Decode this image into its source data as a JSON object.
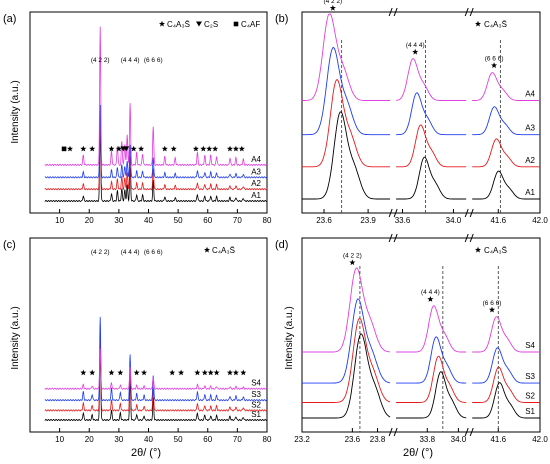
{
  "figure": {
    "ylabel": "Intensity (a.u.)",
    "xlabel": "2θ/ (°)"
  },
  "chart_data": [
    {
      "panel": "(a)",
      "type": "line",
      "ylabel": "Intensity (a.u.)",
      "xlabel": "",
      "xlim": [
        0,
        80
      ],
      "xticks": [
        10,
        20,
        30,
        40,
        50,
        60,
        70,
        80
      ],
      "legend": {
        "placement": "top-right",
        "entries": [
          {
            "marker": "star",
            "label": "C₄A₃S̄"
          },
          {
            "marker": "triangle-down",
            "label": "C₂S"
          },
          {
            "marker": "square",
            "label": "C₄AF"
          }
        ]
      },
      "peak_labels": [
        {
          "text": "(4 2 2)",
          "x": 23.7
        },
        {
          "text": "(4 4 4)",
          "x": 33.8
        },
        {
          "text": "(6 6 6)",
          "x": 41.6
        }
      ],
      "marker_row": [
        {
          "type": "square",
          "x": 11.5
        },
        {
          "type": "star",
          "x": 13.5
        },
        {
          "type": "star",
          "x": 18.0
        },
        {
          "type": "star",
          "x": 21.0
        },
        {
          "type": "star",
          "x": 27.5
        },
        {
          "type": "star",
          "x": 30.0
        },
        {
          "type": "triangle-down",
          "x": 31.5
        },
        {
          "type": "triangle-down",
          "x": 32.5
        },
        {
          "type": "star",
          "x": 35.0
        },
        {
          "type": "star",
          "x": 37.5
        },
        {
          "type": "star",
          "x": 45.5
        },
        {
          "type": "star",
          "x": 48.5
        },
        {
          "type": "star",
          "x": 56.0
        },
        {
          "type": "star",
          "x": 58.5
        },
        {
          "type": "star",
          "x": 60.5
        },
        {
          "type": "star",
          "x": 62.5
        },
        {
          "type": "star",
          "x": 67.5
        },
        {
          "type": "star",
          "x": 69.5
        },
        {
          "type": "star",
          "x": 71.5
        }
      ],
      "peaks": [
        [
          23.7,
          1.0
        ],
        [
          33.8,
          0.45
        ],
        [
          41.6,
          0.28
        ],
        [
          29.5,
          0.14
        ],
        [
          31.0,
          0.17
        ],
        [
          32.0,
          0.15
        ],
        [
          32.8,
          0.22
        ],
        [
          36.0,
          0.09
        ],
        [
          38.0,
          0.08
        ],
        [
          18.0,
          0.07
        ],
        [
          27.5,
          0.1
        ],
        [
          45.5,
          0.06
        ],
        [
          49.0,
          0.05
        ],
        [
          56.5,
          0.09
        ],
        [
          59.0,
          0.07
        ],
        [
          61.0,
          0.07
        ],
        [
          63.0,
          0.06
        ],
        [
          67.5,
          0.05
        ],
        [
          69.5,
          0.05
        ],
        [
          72.0,
          0.04
        ]
      ],
      "series": [
        {
          "name": "A1",
          "color": "#000000",
          "offset": 0.0,
          "scale": 1.0
        },
        {
          "name": "A2",
          "color": "#e41a1c",
          "offset": 0.095,
          "scale": 1.0
        },
        {
          "name": "A3",
          "color": "#1f3df0",
          "offset": 0.19,
          "scale": 1.0
        },
        {
          "name": "A4",
          "color": "#e040e0",
          "offset": 0.29,
          "scale": 1.9
        }
      ]
    },
    {
      "panel": "(b)",
      "type": "line",
      "ylabel": "Intensity (a.u.)",
      "xlabel": "",
      "legend": {
        "placement": "top-right",
        "entries": [
          {
            "marker": "star",
            "label": "C₄A₃S̄"
          }
        ]
      },
      "segments": [
        {
          "xlim": [
            23.45,
            24.05
          ],
          "ticks": [
            23.6,
            23.9
          ]
        },
        {
          "xlim": [
            33.55,
            34.1
          ],
          "ticks": [
            33.6,
            34.0
          ]
        },
        {
          "xlim": [
            41.35,
            42.0
          ],
          "ticks": [
            41.6,
            42.0
          ]
        }
      ],
      "ref_lines": [
        23.72,
        33.78,
        41.62
      ],
      "peak_labels": [
        {
          "text": "(4 2 2)",
          "x": 23.66,
          "segment": 0
        },
        {
          "text": "(4 4 4)",
          "x": 33.7,
          "segment": 1
        },
        {
          "text": "(6 6 6)",
          "x": 41.56,
          "segment": 2
        }
      ],
      "peaks": [
        {
          "segment": 0,
          "x0": 23.71,
          "height": 1.0,
          "shift": -0.025
        },
        {
          "segment": 1,
          "x0": 33.77,
          "height": 0.48,
          "shift": -0.03
        },
        {
          "segment": 2,
          "x0": 41.6,
          "height": 0.32,
          "shift": -0.02
        }
      ],
      "series": [
        {
          "name": "A1",
          "color": "#000000",
          "offset": 0.0,
          "k": 0
        },
        {
          "name": "A2",
          "color": "#e41a1c",
          "offset": 0.16,
          "k": 1
        },
        {
          "name": "A3",
          "color": "#1f3df0",
          "offset": 0.32,
          "k": 2
        },
        {
          "name": "A4",
          "color": "#e040e0",
          "offset": 0.49,
          "k": 3
        }
      ]
    },
    {
      "panel": "(c)",
      "type": "line",
      "ylabel": "Intensity (a.u.)",
      "xlabel": "2θ/ (°)",
      "xlim": [
        0,
        80
      ],
      "xticks": [
        10,
        20,
        30,
        40,
        50,
        60,
        70,
        80
      ],
      "legend": {
        "placement": "top-right",
        "entries": [
          {
            "marker": "star",
            "label": "C₄A₃S̄"
          }
        ]
      },
      "peak_labels": [
        {
          "text": "(4 2 2)",
          "x": 23.7
        },
        {
          "text": "(4 4 4)",
          "x": 33.8
        },
        {
          "text": "(6 6 6)",
          "x": 41.6
        }
      ],
      "marker_row": [
        {
          "type": "star",
          "x": 18.0
        },
        {
          "type": "star",
          "x": 21.0
        },
        {
          "type": "star",
          "x": 27.5
        },
        {
          "type": "star",
          "x": 30.5
        },
        {
          "type": "star",
          "x": 36.0
        },
        {
          "type": "star",
          "x": 38.5
        },
        {
          "type": "star",
          "x": 48.0
        },
        {
          "type": "star",
          "x": 51.0
        },
        {
          "type": "star",
          "x": 56.5
        },
        {
          "type": "star",
          "x": 59.0
        },
        {
          "type": "star",
          "x": 61.0
        },
        {
          "type": "star",
          "x": 63.0
        },
        {
          "type": "star",
          "x": 67.5
        },
        {
          "type": "star",
          "x": 69.5
        },
        {
          "type": "star",
          "x": 72.0
        }
      ],
      "peaks": [
        [
          23.7,
          1.0
        ],
        [
          33.8,
          0.55
        ],
        [
          41.6,
          0.3
        ],
        [
          18.0,
          0.1
        ],
        [
          21.0,
          0.07
        ],
        [
          27.5,
          0.14
        ],
        [
          30.5,
          0.1
        ],
        [
          36.0,
          0.08
        ],
        [
          38.5,
          0.06
        ],
        [
          56.5,
          0.1
        ],
        [
          59.0,
          0.07
        ],
        [
          61.0,
          0.06
        ],
        [
          63.0,
          0.06
        ],
        [
          67.5,
          0.05
        ],
        [
          69.5,
          0.05
        ],
        [
          72.0,
          0.04
        ]
      ],
      "series": [
        {
          "name": "S1",
          "color": "#000000",
          "offset": 0.0,
          "scale": 1.0
        },
        {
          "name": "S2",
          "color": "#e41a1c",
          "offset": 0.08,
          "scale": 1.0
        },
        {
          "name": "S3",
          "color": "#1f3df0",
          "offset": 0.165,
          "scale": 1.15
        },
        {
          "name": "S4",
          "color": "#e040e0",
          "offset": 0.26,
          "scale": 0.55
        }
      ]
    },
    {
      "panel": "(d)",
      "type": "line",
      "ylabel": "Intensity (a.u.)",
      "xlabel": "2θ/ (°)",
      "legend": {
        "placement": "top-right",
        "entries": [
          {
            "marker": "star",
            "label": "C₄A₃S̄"
          }
        ]
      },
      "segments": [
        {
          "xlim": [
            23.2,
            23.9
          ],
          "ticks": [
            23.2,
            23.6,
            23.8
          ]
        },
        {
          "xlim": [
            33.6,
            34.05
          ],
          "ticks": [
            33.8,
            34.0
          ]
        },
        {
          "xlim": [
            41.35,
            42.0
          ],
          "ticks": [
            41.6,
            42.0
          ]
        }
      ],
      "ref_lines": [
        23.66,
        33.9,
        41.6
      ],
      "peak_labels": [
        {
          "text": "(4 2 2)",
          "x": 23.6,
          "segment": 0
        },
        {
          "text": "(4 4 4)",
          "x": 33.82,
          "segment": 1
        },
        {
          "text": "(6 6 6)",
          "x": 41.54,
          "segment": 2
        }
      ],
      "peaks": [
        {
          "segment": 0,
          "x0": 23.63,
          "height": 1.0,
          "shift": 0.012
        },
        {
          "segment": 1,
          "x0": 33.84,
          "height": 0.55,
          "shift": 0.015
        },
        {
          "segment": 2,
          "x0": 41.58,
          "height": 0.42,
          "shift": 0.01
        }
      ],
      "series": [
        {
          "name": "S1",
          "color": "#000000",
          "offset": 0.0,
          "k": 3
        },
        {
          "name": "S2",
          "color": "#e41a1c",
          "offset": 0.08,
          "k": 2
        },
        {
          "name": "S3",
          "color": "#1f3df0",
          "offset": 0.18,
          "k": 1
        },
        {
          "name": "S4",
          "color": "#e040e0",
          "offset": 0.34,
          "k": 0
        }
      ]
    }
  ]
}
